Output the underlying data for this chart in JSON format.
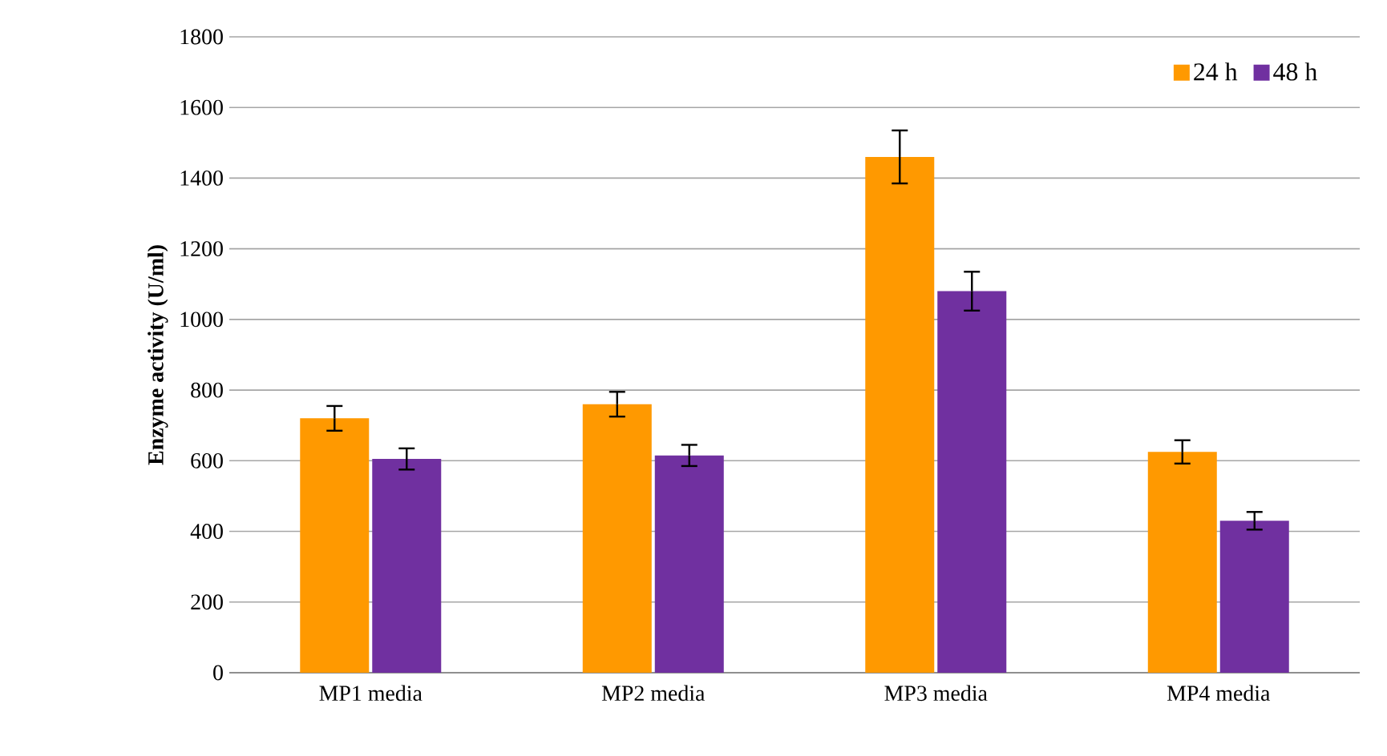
{
  "chart_data": {
    "type": "bar",
    "ylabel": "Enzyme activity (U/ml)",
    "categories": [
      "MP1 media",
      "MP2 media",
      "MP3 media",
      "MP4 media"
    ],
    "series": [
      {
        "name": "24 h",
        "color": "#ff9900",
        "values": [
          720,
          760,
          1460,
          625
        ],
        "errors": [
          35,
          35,
          75,
          33
        ]
      },
      {
        "name": "48 h",
        "color": "#7030a0",
        "values": [
          605,
          615,
          1080,
          430
        ],
        "errors": [
          30,
          30,
          55,
          25
        ]
      }
    ],
    "ylim": [
      0,
      1800
    ],
    "yticks": [
      0,
      200,
      400,
      600,
      800,
      1000,
      1200,
      1400,
      1600,
      1800
    ],
    "grid": "y",
    "legend": "top right"
  }
}
